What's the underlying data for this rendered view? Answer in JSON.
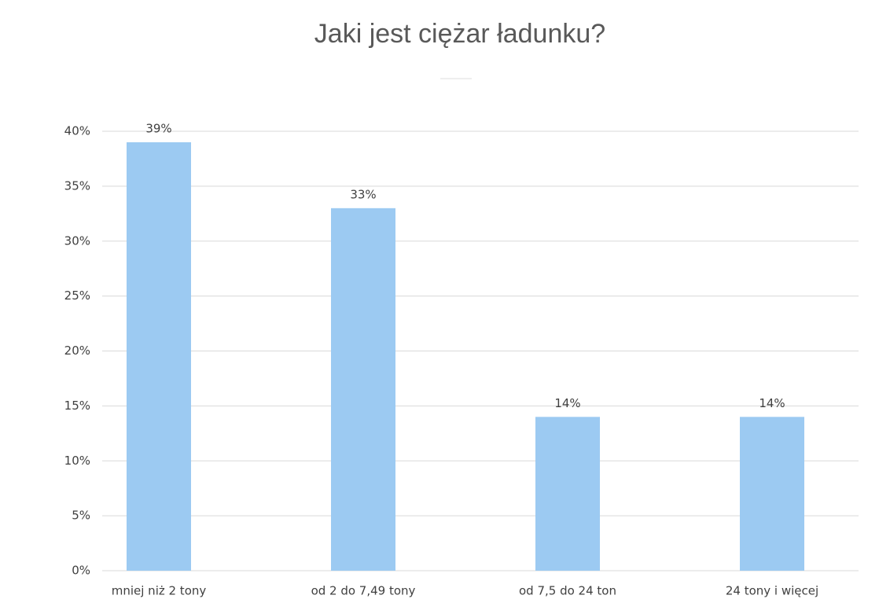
{
  "chart_data": {
    "type": "bar",
    "title": "Jaki jest ciężar ładunku?",
    "categories": [
      "mniej niż 2 tony",
      "od 2 do 7,49 tony",
      "od 7,5 do 24 ton",
      "24 tony i więcej"
    ],
    "values": [
      39,
      33,
      14,
      14
    ],
    "value_labels": [
      "39%",
      "33%",
      "14%",
      "14%"
    ],
    "color": "#9ccaf2",
    "ylim": [
      0,
      40
    ],
    "yticks": [
      {
        "value": 0,
        "label": "0%"
      },
      {
        "value": 5,
        "label": "5%"
      },
      {
        "value": 10,
        "label": "10%"
      },
      {
        "value": 15,
        "label": "15%"
      },
      {
        "value": 20,
        "label": "20%"
      },
      {
        "value": 25,
        "label": "25%"
      },
      {
        "value": 30,
        "label": "30%"
      },
      {
        "value": 35,
        "label": "35%"
      },
      {
        "value": 40,
        "label": "40%"
      }
    ],
    "grid": true
  }
}
